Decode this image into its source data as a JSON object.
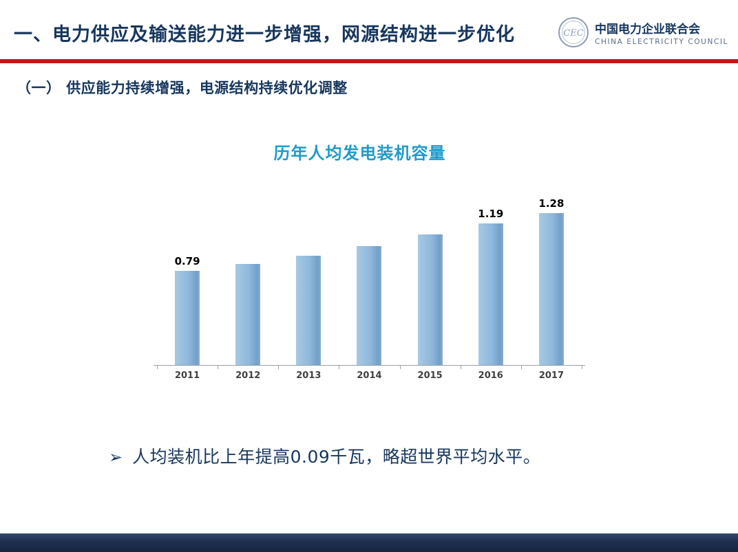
{
  "header": {
    "title": "一、电力供应及输送能力进一步增强，网源结构进一步优化",
    "logo": {
      "emblem_letters": "CEC",
      "org_cn": "中国电力企业联合会",
      "org_en": "CHINA ELECTRICITY COUNCIL"
    }
  },
  "section_heading": "（一）  供应能力持续增强，电源结构持续优化调整",
  "chart_data": {
    "type": "bar",
    "title": "历年人均发电装机容量",
    "categories": [
      "2011",
      "2012",
      "2013",
      "2014",
      "2015",
      "2016",
      "2017"
    ],
    "values": [
      0.79,
      0.85,
      0.92,
      1.0,
      1.1,
      1.19,
      1.28
    ],
    "data_labels": [
      "0.79",
      "",
      "",
      "",
      "",
      "1.19",
      "1.28"
    ],
    "xlabel": "",
    "ylabel": "",
    "ylim": [
      0,
      1.4
    ],
    "grid": false,
    "legend": false,
    "bar_color": "#8FB8DB",
    "legend_position": "none"
  },
  "bullet": {
    "marker": "➢",
    "text": "人均装机比上年提高0.09千瓦，略超世界平均水平。"
  },
  "colors": {
    "heading_navy": "#17365D",
    "divider_red": "#C01820",
    "chart_title_blue": "#1F9BCB",
    "bar_blue": "#8FB8DB",
    "footer_navy": "#1E2F4F"
  }
}
